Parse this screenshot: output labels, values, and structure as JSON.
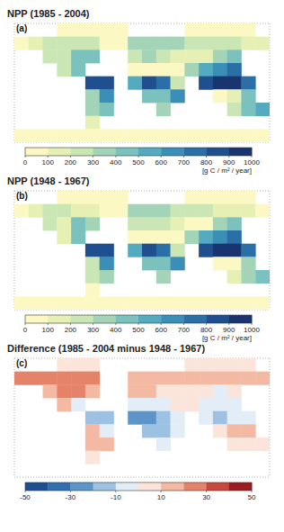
{
  "chart_data": [
    {
      "type": "heatmap",
      "label": "(a)",
      "title": "NPP (1985 - 2004)",
      "x": [
        -170,
        -150,
        -130,
        -110,
        -90,
        -70,
        -50,
        -30,
        -10,
        10,
        30,
        50,
        70,
        90,
        110,
        130,
        150,
        170
      ],
      "y": [
        80,
        60,
        40,
        20,
        0,
        -20,
        -40,
        -60,
        -80
      ],
      "values": [
        [
          null,
          null,
          null,
          20,
          20,
          10,
          0,
          0,
          null,
          null,
          null,
          null,
          40,
          40,
          40,
          40,
          30,
          null
        ],
        [
          80,
          150,
          250,
          250,
          200,
          200,
          0,
          0,
          350,
          350,
          350,
          300,
          250,
          250,
          200,
          200,
          150,
          100
        ],
        [
          null,
          null,
          250,
          200,
          450,
          400,
          null,
          null,
          250,
          300,
          250,
          150,
          100,
          100,
          350,
          450,
          null,
          null
        ],
        [
          null,
          null,
          null,
          200,
          400,
          null,
          null,
          null,
          20,
          20,
          30,
          50,
          350,
          500,
          600,
          700,
          null,
          null
        ],
        [
          null,
          null,
          null,
          null,
          null,
          800,
          800,
          null,
          500,
          800,
          700,
          200,
          null,
          800,
          900,
          900,
          700,
          null
        ],
        [
          null,
          null,
          null,
          null,
          null,
          300,
          600,
          null,
          null,
          400,
          400,
          600,
          null,
          null,
          50,
          100,
          400,
          null
        ],
        [
          null,
          null,
          null,
          null,
          null,
          300,
          400,
          null,
          null,
          null,
          300,
          null,
          null,
          null,
          null,
          200,
          400,
          500
        ],
        [
          null,
          null,
          null,
          null,
          null,
          100,
          null,
          null,
          null,
          null,
          null,
          null,
          null,
          null,
          null,
          null,
          null,
          null
        ],
        [
          0,
          0,
          0,
          0,
          0,
          0,
          0,
          0,
          0,
          0,
          0,
          0,
          0,
          0,
          0,
          0,
          0,
          0
        ]
      ],
      "xlim": [
        -180,
        180
      ],
      "ylim": [
        -90,
        90
      ],
      "xticks": [
        -180,
        -120,
        -60,
        0,
        60,
        120,
        180
      ],
      "yticks": [
        -90,
        -60,
        -30,
        0,
        30,
        60,
        90
      ],
      "grid": true,
      "tick_labels": false,
      "colorbar": {
        "range": [
          0,
          1000
        ],
        "ticks": [
          0,
          100,
          200,
          300,
          400,
          500,
          600,
          700,
          800,
          900,
          1000
        ],
        "colors": [
          "#fbf8c4",
          "#e7f0b4",
          "#c9e6b4",
          "#a4d4b8",
          "#7bc2bf",
          "#54abc0",
          "#3a8fb8",
          "#2a6fa6",
          "#1f4f8f",
          "#1a3470"
        ],
        "label": "[g C / m² / year]"
      }
    },
    {
      "type": "heatmap",
      "label": "(b)",
      "title": "NPP (1948 - 1967)",
      "x": [
        -170,
        -150,
        -130,
        -110,
        -90,
        -70,
        -50,
        -30,
        -10,
        10,
        30,
        50,
        70,
        90,
        110,
        130,
        150,
        170
      ],
      "y": [
        80,
        60,
        40,
        20,
        0,
        -20,
        -40,
        -60,
        -80
      ],
      "values": [
        [
          null,
          null,
          null,
          15,
          15,
          5,
          0,
          0,
          null,
          null,
          null,
          null,
          35,
          35,
          35,
          35,
          25,
          null
        ],
        [
          60,
          130,
          230,
          230,
          180,
          180,
          0,
          0,
          340,
          340,
          340,
          285,
          235,
          235,
          185,
          185,
          135,
          85
        ],
        [
          null,
          null,
          240,
          180,
          430,
          385,
          null,
          null,
          240,
          290,
          245,
          145,
          95,
          95,
          355,
          450,
          null,
          null
        ],
        [
          null,
          null,
          null,
          190,
          410,
          null,
          null,
          null,
          30,
          30,
          35,
          50,
          345,
          505,
          610,
          705,
          null,
          null
        ],
        [
          null,
          null,
          null,
          null,
          null,
          820,
          815,
          null,
          525,
          830,
          720,
          210,
          null,
          810,
          920,
          910,
          705,
          null
        ],
        [
          null,
          null,
          null,
          null,
          null,
          290,
          610,
          null,
          null,
          420,
          415,
          610,
          null,
          null,
          45,
          90,
          390,
          null
        ],
        [
          null,
          null,
          null,
          null,
          null,
          285,
          390,
          null,
          null,
          null,
          310,
          null,
          null,
          null,
          null,
          195,
          395,
          495
        ],
        [
          null,
          null,
          null,
          null,
          null,
          95,
          null,
          null,
          null,
          null,
          null,
          null,
          null,
          null,
          null,
          null,
          null,
          null
        ],
        [
          0,
          0,
          0,
          0,
          0,
          0,
          0,
          0,
          0,
          0,
          0,
          0,
          0,
          0,
          0,
          0,
          0,
          0
        ]
      ],
      "xlim": [
        -180,
        180
      ],
      "ylim": [
        -90,
        90
      ],
      "xticks": [
        -180,
        -120,
        -60,
        0,
        60,
        120,
        180
      ],
      "yticks": [
        -90,
        -60,
        -30,
        0,
        30,
        60,
        90
      ],
      "grid": true,
      "tick_labels": false,
      "colorbar": {
        "range": [
          0,
          1000
        ],
        "ticks": [
          0,
          100,
          200,
          300,
          400,
          500,
          600,
          700,
          800,
          900,
          1000
        ],
        "colors": [
          "#fbf8c4",
          "#e7f0b4",
          "#c9e6b4",
          "#a4d4b8",
          "#7bc2bf",
          "#54abc0",
          "#3a8fb8",
          "#2a6fa6",
          "#1f4f8f",
          "#1a3470"
        ],
        "label": "[g C / m² / year]"
      }
    },
    {
      "type": "heatmap",
      "label": "(c)",
      "title": "Difference (1985 - 2004 minus 1948 - 1967)",
      "x": [
        -170,
        -150,
        -130,
        -110,
        -90,
        -70,
        -50,
        -30,
        -10,
        10,
        30,
        50,
        70,
        90,
        110,
        130,
        150,
        170
      ],
      "y": [
        80,
        60,
        40,
        20,
        0,
        -20,
        -40,
        -60,
        -80
      ],
      "values": [
        [
          null,
          null,
          null,
          5,
          5,
          5,
          null,
          null,
          null,
          null,
          null,
          null,
          5,
          5,
          5,
          5,
          5,
          null
        ],
        [
          20,
          20,
          20,
          20,
          20,
          20,
          null,
          null,
          10,
          10,
          10,
          15,
          15,
          15,
          15,
          15,
          15,
          15
        ],
        [
          null,
          null,
          10,
          20,
          20,
          15,
          null,
          null,
          10,
          10,
          5,
          5,
          5,
          5,
          -5,
          0,
          null,
          null
        ],
        [
          null,
          null,
          null,
          10,
          -10,
          null,
          null,
          null,
          -10,
          -10,
          -5,
          0,
          5,
          -5,
          -10,
          -5,
          null,
          null
        ],
        [
          null,
          null,
          null,
          null,
          null,
          -20,
          -15,
          null,
          -25,
          -30,
          -20,
          -10,
          null,
          -10,
          -20,
          -10,
          -5,
          null
        ],
        [
          null,
          null,
          null,
          null,
          null,
          10,
          -10,
          null,
          null,
          -20,
          -15,
          -10,
          null,
          null,
          5,
          10,
          10,
          null
        ],
        [
          null,
          null,
          null,
          null,
          null,
          15,
          10,
          null,
          null,
          null,
          -10,
          null,
          null,
          null,
          null,
          5,
          5,
          5
        ],
        [
          null,
          null,
          null,
          null,
          null,
          5,
          null,
          null,
          null,
          null,
          null,
          null,
          null,
          null,
          null,
          null,
          null,
          null
        ],
        [
          null,
          null,
          null,
          null,
          null,
          null,
          null,
          null,
          null,
          null,
          null,
          null,
          null,
          null,
          null,
          null,
          null,
          null
        ]
      ],
      "xlim": [
        -180,
        180
      ],
      "ylim": [
        -90,
        90
      ],
      "xticks": [
        -180,
        -120,
        -60,
        0,
        60,
        120,
        180
      ],
      "yticks": [
        -90,
        -60,
        -30,
        0,
        30,
        60,
        90
      ],
      "grid": true,
      "tick_labels": false,
      "colorbar": {
        "range": [
          -50,
          50
        ],
        "ticks": [
          -50,
          -30,
          -10,
          10,
          30,
          50
        ],
        "colors": [
          "#1d4f91",
          "#2f6fb0",
          "#5d95cb",
          "#9cc1e2",
          "#e3edf7",
          "#fbe4da",
          "#f4b9a2",
          "#e5836a",
          "#c8483c",
          "#9b1c22"
        ]
      }
    }
  ]
}
